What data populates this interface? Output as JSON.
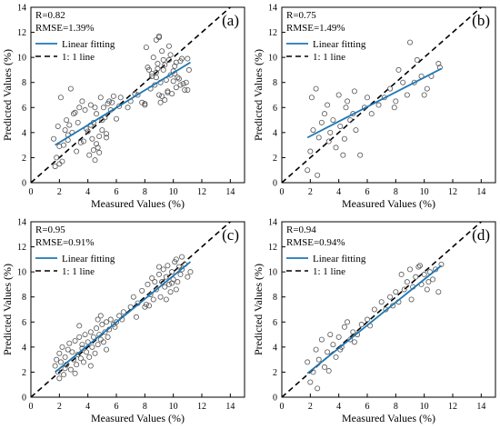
{
  "chart_data": [
    {
      "type": "scatter",
      "panel_tag": "(a)",
      "stats": [
        "R=0.82",
        "RMSE=1.39%"
      ],
      "legend": [
        "Linear fitting",
        "1: 1 line"
      ],
      "xlabel": "Measured Values (%)",
      "ylabel": "Predicted Values (%)",
      "xlim": [
        0,
        15
      ],
      "ylim": [
        0,
        14
      ],
      "xticks": [
        0,
        2,
        4,
        6,
        8,
        10,
        12,
        14
      ],
      "yticks": [
        0,
        2,
        4,
        6,
        8,
        10,
        12,
        14
      ],
      "grid": false,
      "fit_line": [
        [
          1.7,
          3.0
        ],
        [
          11.2,
          9.6
        ]
      ],
      "identity_line": [
        [
          0,
          0
        ],
        [
          14,
          14
        ]
      ],
      "colors": {
        "points": "#555555",
        "fit": "#1f77b4",
        "identity": "#000000"
      },
      "x": [
        1.6,
        1.8,
        1.9,
        2.0,
        2.1,
        2.3,
        2.4,
        2.5,
        2.6,
        2.8,
        2.9,
        3.0,
        3.2,
        3.3,
        3.4,
        3.5,
        3.6,
        3.8,
        4.0,
        4.1,
        4.2,
        4.3,
        4.4,
        4.5,
        4.6,
        4.7,
        4.8,
        4.9,
        5.0,
        5.1,
        5.2,
        5.3,
        5.5,
        5.6,
        5.8,
        6.0,
        7.0,
        7.5,
        8.0,
        8.2,
        8.4,
        8.5,
        8.6,
        8.7,
        8.8,
        8.9,
        9.0,
        9.1,
        9.2,
        9.3,
        9.4,
        9.5,
        9.6,
        9.7,
        9.8,
        9.9,
        10.0,
        10.1,
        10.2,
        10.3,
        10.5,
        10.7,
        10.9,
        11.1,
        1.7,
        2.0,
        2.2,
        2.6,
        3.1,
        3.7,
        4.2,
        4.5,
        4.8,
        5.0,
        5.3,
        5.7,
        6.3,
        6.8,
        7.3,
        7.8,
        8.1,
        8.3,
        8.5,
        8.8,
        9.0,
        9.2,
        9.4,
        9.6,
        9.8,
        10.0,
        10.2,
        10.4,
        10.6,
        10.8,
        11.0,
        2.7,
        3.9,
        4.4,
        4.6,
        5.4,
        6.2,
        8.0,
        8.9,
        9.3,
        9.7,
        10.1,
        10.5,
        11.0,
        9.0,
        8.8,
        9.1
      ],
      "y": [
        3.5,
        2.0,
        4.5,
        1.5,
        6.8,
        3.0,
        4.2,
        5.0,
        3.8,
        7.5,
        4.0,
        5.5,
        2.5,
        4.8,
        6.0,
        3.2,
        6.5,
        5.8,
        4.1,
        2.2,
        6.2,
        3.5,
        4.8,
        1.8,
        5.5,
        2.8,
        3.7,
        6.8,
        4.2,
        6.0,
        5.2,
        3.6,
        6.5,
        5.8,
        6.9,
        5.1,
        6.5,
        7.0,
        6.2,
        9.2,
        7.5,
        8.5,
        10.0,
        7.8,
        8.8,
        9.5,
        7.0,
        8.0,
        10.5,
        9.0,
        6.6,
        8.2,
        7.3,
        9.8,
        8.6,
        7.1,
        8.9,
        9.3,
        7.6,
        8.4,
        9.7,
        7.9,
        8.0,
        9.0,
        1.3,
        2.9,
        1.7,
        3.4,
        5.6,
        3.3,
        4.6,
        6.0,
        2.4,
        5.0,
        3.9,
        6.4,
        6.8,
        6.0,
        7.1,
        6.4,
        10.8,
        9.0,
        8.7,
        11.4,
        11.6,
        6.9,
        9.4,
        7.2,
        10.2,
        8.1,
        9.6,
        8.3,
        9.9,
        7.4,
        9.9,
        4.6,
        4.3,
        2.6,
        3.1,
        6.3,
        6.1,
        6.3,
        9.1,
        9.8,
        10.9,
        8.7,
        7.8,
        7.4,
        11.7,
        8.4,
        6.4
      ]
    },
    {
      "type": "scatter",
      "panel_tag": "(b)",
      "stats": [
        "R=0.75",
        "RMSE=1.49%"
      ],
      "legend": [
        "Linear fitting",
        "1: 1 line"
      ],
      "xlabel": "Measured Values (%)",
      "ylabel": "Predicted Values (%)",
      "xlim": [
        0,
        15
      ],
      "ylim": [
        0,
        14
      ],
      "xticks": [
        0,
        2,
        4,
        6,
        8,
        10,
        12,
        14
      ],
      "yticks": [
        0,
        2,
        4,
        6,
        8,
        10,
        12,
        14
      ],
      "grid": false,
      "fit_line": [
        [
          1.8,
          3.6
        ],
        [
          11.2,
          9.1
        ]
      ],
      "identity_line": [
        [
          0,
          0
        ],
        [
          14,
          14
        ]
      ],
      "colors": {
        "points": "#555555",
        "fit": "#1f77b4",
        "identity": "#000000"
      },
      "x": [
        1.8,
        2.0,
        2.1,
        2.2,
        2.4,
        2.6,
        2.8,
        3.0,
        3.2,
        3.4,
        3.6,
        3.8,
        4.0,
        4.1,
        4.3,
        4.5,
        4.6,
        4.8,
        5.0,
        5.2,
        5.5,
        5.8,
        6.0,
        6.3,
        6.8,
        7.2,
        7.6,
        8.0,
        8.2,
        8.5,
        8.8,
        9.0,
        9.3,
        9.5,
        9.8,
        10.0,
        10.2,
        10.5,
        11.0,
        11.1,
        2.5,
        3.3,
        4.4,
        5.1,
        7.9
      ],
      "y": [
        1.0,
        2.5,
        6.8,
        4.2,
        7.5,
        3.6,
        4.8,
        5.5,
        6.2,
        4.0,
        5.0,
        2.8,
        7.0,
        4.5,
        2.2,
        6.0,
        6.5,
        5.0,
        5.5,
        4.2,
        2.2,
        6.0,
        6.8,
        5.5,
        6.2,
        6.8,
        7.5,
        6.5,
        9.0,
        8.0,
        7.0,
        11.2,
        8.0,
        9.8,
        8.5,
        7.0,
        7.5,
        8.5,
        9.5,
        9.2,
        0.6,
        3.3,
        3.5,
        7.3,
        6.0
      ]
    },
    {
      "type": "scatter",
      "panel_tag": "(c)",
      "stats": [
        "R=0.95",
        "RMSE=0.91%"
      ],
      "legend": [
        "Linear fitting",
        "1: 1 line"
      ],
      "xlabel": "Measured Values (%)",
      "ylabel": "Predicted Values (%)",
      "xlim": [
        0,
        15
      ],
      "ylim": [
        0,
        14
      ],
      "xticks": [
        0,
        2,
        4,
        6,
        8,
        10,
        12,
        14
      ],
      "yticks": [
        0,
        2,
        4,
        6,
        8,
        10,
        12,
        14
      ],
      "grid": false,
      "fit_line": [
        [
          1.7,
          2.0
        ],
        [
          11.2,
          10.8
        ]
      ],
      "identity_line": [
        [
          0,
          0
        ],
        [
          14,
          14
        ]
      ],
      "colors": {
        "points": "#555555",
        "fit": "#1f77b4",
        "identity": "#000000"
      },
      "x": [
        1.7,
        1.8,
        1.9,
        2.0,
        2.1,
        2.2,
        2.3,
        2.4,
        2.5,
        2.6,
        2.7,
        2.8,
        2.9,
        3.0,
        3.1,
        3.2,
        3.3,
        3.4,
        3.5,
        3.6,
        3.7,
        3.8,
        3.9,
        4.0,
        4.1,
        4.2,
        4.3,
        4.4,
        4.5,
        4.6,
        4.7,
        4.8,
        4.9,
        5.0,
        5.1,
        5.2,
        5.3,
        5.4,
        5.5,
        5.6,
        5.8,
        6.0,
        6.2,
        6.5,
        7.0,
        7.2,
        7.5,
        7.8,
        8.0,
        8.2,
        8.4,
        8.5,
        8.6,
        8.8,
        9.0,
        9.1,
        9.2,
        9.3,
        9.4,
        9.5,
        9.6,
        9.7,
        9.8,
        9.9,
        10.0,
        10.1,
        10.2,
        10.3,
        10.4,
        10.5,
        10.6,
        10.8,
        11.0,
        11.2,
        2.0,
        2.4,
        3.1,
        3.6,
        4.2,
        4.7,
        5.3,
        5.9,
        7.4,
        8.1,
        8.7,
        9.0,
        9.5,
        9.9,
        10.2,
        10.6,
        3.4,
        4.9,
        6.4,
        8.3
      ],
      "y": [
        2.5,
        3.0,
        2.0,
        3.5,
        2.8,
        4.0,
        1.8,
        3.2,
        2.6,
        3.8,
        4.3,
        2.2,
        3.6,
        3.0,
        4.5,
        2.6,
        3.4,
        4.8,
        3.1,
        4.2,
        2.8,
        5.0,
        3.6,
        4.4,
        3.2,
        5.2,
        4.0,
        4.8,
        3.5,
        5.5,
        4.2,
        5.0,
        4.6,
        5.8,
        4.4,
        5.2,
        6.0,
        4.8,
        5.4,
        6.2,
        5.8,
        6.0,
        6.5,
        6.8,
        7.2,
        8.0,
        7.5,
        8.5,
        7.2,
        9.0,
        8.2,
        9.5,
        7.8,
        8.6,
        9.8,
        8.0,
        9.2,
        10.2,
        8.8,
        9.6,
        10.5,
        9.0,
        8.4,
        10.0,
        9.4,
        10.8,
        11.0,
        9.2,
        10.4,
        9.8,
        11.2,
        10.6,
        9.6,
        10.0,
        1.5,
        2.3,
        1.9,
        3.9,
        2.5,
        6.2,
        3.8,
        5.6,
        6.4,
        7.4,
        9.2,
        10.4,
        7.8,
        9.1,
        8.6,
        10.2,
        5.7,
        6.5,
        6.2,
        7.3
      ]
    },
    {
      "type": "scatter",
      "panel_tag": "(d)",
      "stats": [
        "R=0.94",
        "RMSE=0.94%"
      ],
      "legend": [
        "Linear fitting",
        "1: 1 line"
      ],
      "xlabel": "Measured Values (%)",
      "ylabel": "Predicted Values (%)",
      "xlim": [
        0,
        15
      ],
      "ylim": [
        0,
        14
      ],
      "xticks": [
        0,
        2,
        4,
        6,
        8,
        10,
        12,
        14
      ],
      "yticks": [
        0,
        2,
        4,
        6,
        8,
        10,
        12,
        14
      ],
      "grid": false,
      "fit_line": [
        [
          1.8,
          1.9
        ],
        [
          11.2,
          10.5
        ]
      ],
      "identity_line": [
        [
          0,
          0
        ],
        [
          14,
          14
        ]
      ],
      "colors": {
        "points": "#555555",
        "fit": "#1f77b4",
        "identity": "#000000"
      },
      "x": [
        1.8,
        2.0,
        2.2,
        2.4,
        2.6,
        2.8,
        3.0,
        3.2,
        3.4,
        3.6,
        3.8,
        4.0,
        4.2,
        4.4,
        4.6,
        4.8,
        5.0,
        5.3,
        5.6,
        6.0,
        6.5,
        7.0,
        7.3,
        7.6,
        8.0,
        8.2,
        8.4,
        8.6,
        8.8,
        9.0,
        9.2,
        9.4,
        9.6,
        9.8,
        10.0,
        10.2,
        10.4,
        10.6,
        10.8,
        11.0,
        11.2,
        2.5,
        3.3,
        4.1,
        5.1,
        6.2,
        7.8,
        9.1,
        9.7,
        10.3
      ],
      "y": [
        2.8,
        1.2,
        2.0,
        3.8,
        3.0,
        4.6,
        2.4,
        3.6,
        5.0,
        4.2,
        3.2,
        4.8,
        4.0,
        5.6,
        6.0,
        4.6,
        5.2,
        5.0,
        5.8,
        6.2,
        7.0,
        7.6,
        7.0,
        8.0,
        8.4,
        7.6,
        9.8,
        8.6,
        9.2,
        10.2,
        8.8,
        9.6,
        10.4,
        9.0,
        9.8,
        8.6,
        10.0,
        9.4,
        10.2,
        8.4,
        10.6,
        0.7,
        2.1,
        3.8,
        4.4,
        5.7,
        7.3,
        7.8,
        10.5,
        9.2
      ]
    }
  ]
}
